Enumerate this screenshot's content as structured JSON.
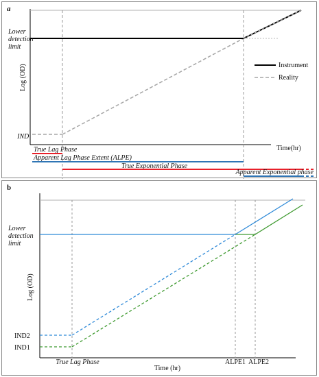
{
  "panel_a": {
    "letter": "a",
    "y_axis_label": "Log (OD)",
    "x_axis_label": "Time(hr)",
    "lower_detection_limit": "Lower detection limit",
    "lower_detection_lines": [
      "Lower",
      "detection",
      "limit"
    ],
    "ind_label": "IND",
    "legend": {
      "instrument": "Instrument",
      "reality": "Reality"
    },
    "phases": {
      "true_lag": "True Lag Phase",
      "alpe": "Apparent Lag Phase Extent (ALPE)",
      "true_exp": "True Exponential Phase",
      "apparent_exp": "Apparent Exponential phase"
    },
    "colors": {
      "instrument": "#000000",
      "reality": "#a6a6a6",
      "red": "#e8202a",
      "blue": "#2f75b5"
    }
  },
  "panel_b": {
    "letter": "b",
    "y_axis_label": "Log (OD)",
    "x_axis_label": "Time (hr)",
    "lower_detection_limit": "Lower detection limit",
    "lower_detection_lines": [
      "Lower",
      "detection",
      "limit"
    ],
    "ind2_label": "IND2",
    "ind1_label": "IND1",
    "true_lag_label": "True Lag Phase",
    "alpe1_label": "ALPE1",
    "alpe2_label": "ALPE2",
    "colors": {
      "blue": "#2f8ad8",
      "green": "#3f9a30",
      "guide": "#9a9a9a"
    }
  }
}
